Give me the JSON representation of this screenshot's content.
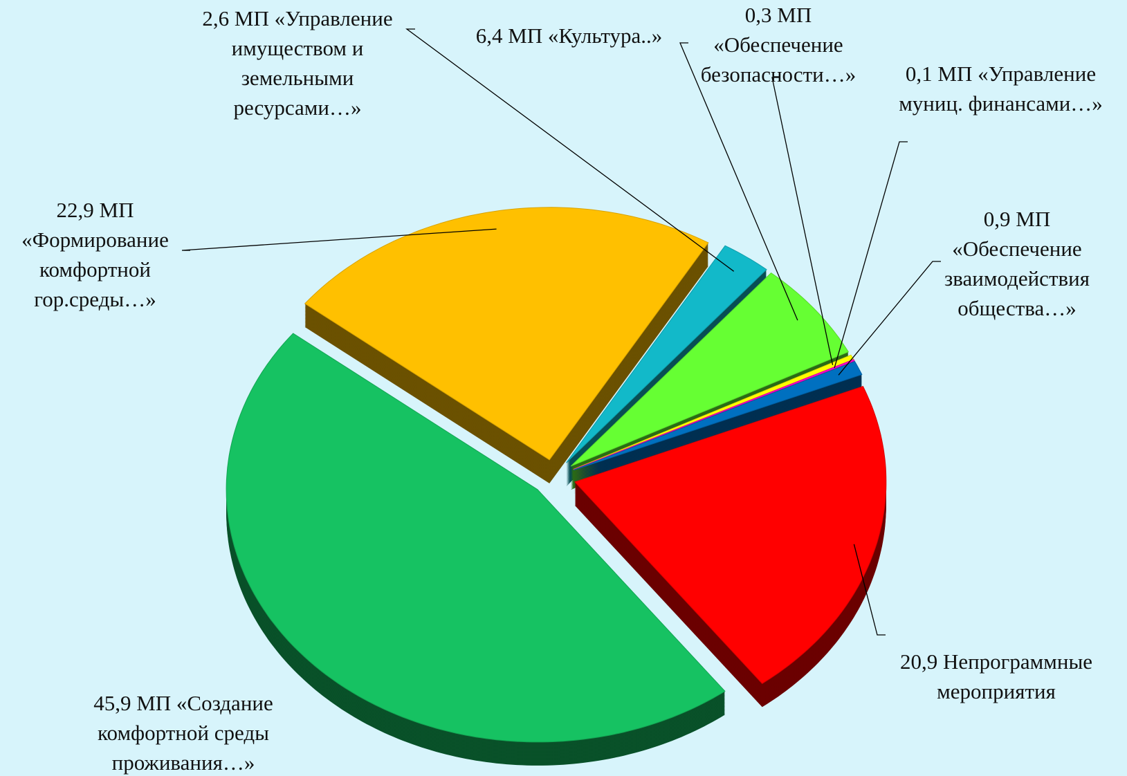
{
  "chart_data": {
    "type": "pie",
    "categories": [
      "МП «Создание комфортной среды проживания…»",
      "МП «Формирование комфортной гор.среды…»",
      "МП «Управление имуществом и земельными ресурсами…»",
      "МП «Культура..»",
      "МП «Обеспечение безопасности…»",
      "МП «Управление муниц. финансами…»",
      "МП «Обеспечение зваимодействия общества…»",
      "Непрограммные мероприятия"
    ],
    "values": [
      45.9,
      22.9,
      2.6,
      6.4,
      0.3,
      0.1,
      0.9,
      20.9
    ],
    "value_labels": [
      "45,9",
      "22,9",
      "2,6",
      "6,4",
      "0,3",
      "0,1",
      "0,9",
      "20,9"
    ],
    "colors": [
      "#16c262",
      "#ffc000",
      "#12b9c9",
      "#66ff33",
      "#ffff00",
      "#ff00cc",
      "#0070c0",
      "#ff0000"
    ]
  }
}
